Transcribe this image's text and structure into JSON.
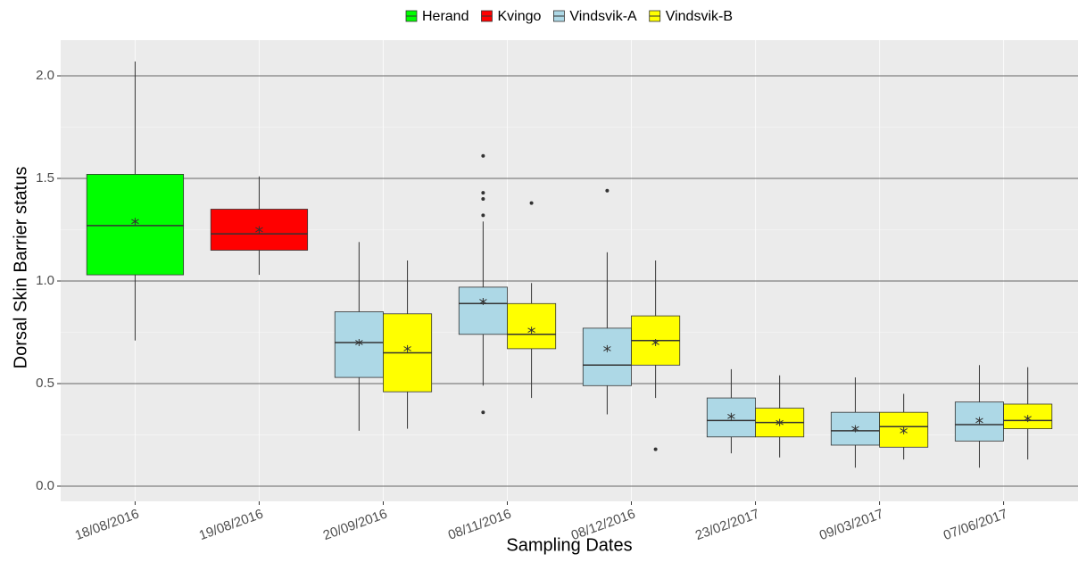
{
  "chart_data": {
    "type": "boxplot",
    "x_label": "Sampling Dates",
    "y_label": "Dorsal Skin Barrier status",
    "categories": [
      "18/08/2016",
      "19/08/2016",
      "20/09/2016",
      "08/11/2016",
      "08/12/2016",
      "23/02/2017",
      "09/03/2017",
      "07/06/2017"
    ],
    "ylim": [
      -0.074,
      2.174
    ],
    "yticks": [
      {
        "value": 0,
        "label": "0.0"
      },
      {
        "value": 0.5,
        "label": "0.5"
      },
      {
        "value": 1,
        "label": "1.0"
      },
      {
        "value": 1.5,
        "label": "1.5"
      },
      {
        "value": 2,
        "label": "2.0"
      }
    ],
    "grid": true,
    "legend_position": "top",
    "series": [
      {
        "name": "Herand",
        "color": "#00ff00",
        "min": [
          0.71,
          null,
          null,
          null,
          null,
          null,
          null,
          null
        ],
        "q1": [
          1.03,
          null,
          null,
          null,
          null,
          null,
          null,
          null
        ],
        "median": [
          1.27,
          null,
          null,
          null,
          null,
          null,
          null,
          null
        ],
        "q3": [
          1.52,
          null,
          null,
          null,
          null,
          null,
          null,
          null
        ],
        "max": [
          2.07,
          null,
          null,
          null,
          null,
          null,
          null,
          null
        ],
        "mean": [
          1.29,
          null,
          null,
          null,
          null,
          null,
          null,
          null
        ],
        "outliers": [
          [],
          [],
          [],
          [],
          [],
          [],
          [],
          []
        ]
      },
      {
        "name": "Kvingo",
        "color": "#ff0000",
        "min": [
          null,
          1.03,
          null,
          null,
          null,
          null,
          null,
          null
        ],
        "q1": [
          null,
          1.15,
          null,
          null,
          null,
          null,
          null,
          null
        ],
        "median": [
          null,
          1.23,
          null,
          null,
          null,
          null,
          null,
          null
        ],
        "q3": [
          null,
          1.35,
          null,
          null,
          null,
          null,
          null,
          null
        ],
        "max": [
          null,
          1.51,
          null,
          null,
          null,
          null,
          null,
          null
        ],
        "mean": [
          null,
          1.25,
          null,
          null,
          null,
          null,
          null,
          null
        ],
        "outliers": [
          [],
          [],
          [],
          [],
          [],
          [],
          [],
          []
        ]
      },
      {
        "name": "Vindsvik-A",
        "color": "#add8e6",
        "min": [
          null,
          null,
          0.27,
          0.49,
          0.35,
          0.16,
          0.09,
          0.09
        ],
        "q1": [
          null,
          null,
          0.53,
          0.74,
          0.49,
          0.24,
          0.2,
          0.22
        ],
        "median": [
          null,
          null,
          0.7,
          0.89,
          0.59,
          0.32,
          0.27,
          0.3
        ],
        "q3": [
          null,
          null,
          0.85,
          0.97,
          0.77,
          0.43,
          0.36,
          0.41
        ],
        "max": [
          null,
          null,
          1.19,
          1.29,
          1.14,
          0.57,
          0.53,
          0.59
        ],
        "mean": [
          null,
          null,
          0.7,
          0.9,
          0.67,
          0.34,
          0.28,
          0.32
        ],
        "outliers": [
          [],
          [],
          [],
          [
            1.61,
            1.43,
            1.4,
            1.32,
            0.36
          ],
          [
            1.44
          ],
          [],
          [],
          []
        ]
      },
      {
        "name": "Vindsvik-B",
        "color": "#ffff00",
        "min": [
          null,
          null,
          0.28,
          0.43,
          0.43,
          0.14,
          0.13,
          0.13
        ],
        "q1": [
          null,
          null,
          0.46,
          0.67,
          0.59,
          0.24,
          0.19,
          0.28
        ],
        "median": [
          null,
          null,
          0.65,
          0.74,
          0.71,
          0.31,
          0.29,
          0.32
        ],
        "q3": [
          null,
          null,
          0.84,
          0.89,
          0.83,
          0.38,
          0.36,
          0.4
        ],
        "max": [
          null,
          null,
          1.1,
          0.99,
          1.1,
          0.54,
          0.45,
          0.58
        ],
        "mean": [
          null,
          null,
          0.67,
          0.76,
          0.7,
          0.31,
          0.27,
          0.33
        ],
        "outliers": [
          [],
          [],
          [],
          [
            1.38
          ],
          [
            0.18
          ],
          [],
          [],
          []
        ]
      }
    ]
  }
}
